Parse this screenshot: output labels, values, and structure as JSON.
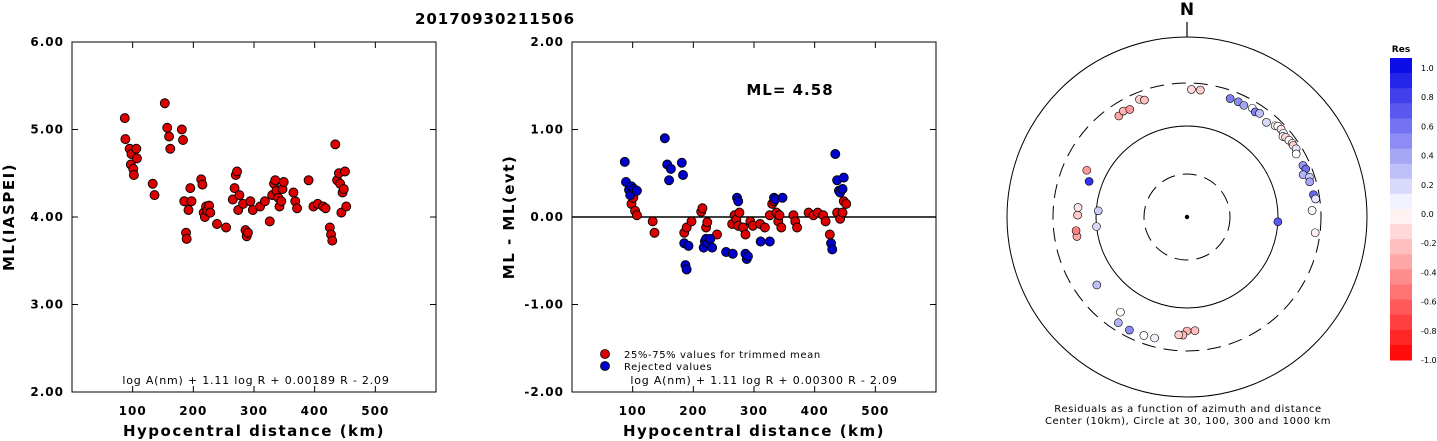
{
  "title": "20170930211506",
  "colors": {
    "accepted": "#dd0000",
    "rejected": "#0000cc",
    "ml_line": "#000000"
  },
  "chart_data": [
    {
      "type": "scatter",
      "id": "ml-vs-distance",
      "xlabel": "Hypocentral distance (km)",
      "ylabel": "ML(IASPEI)",
      "xlim": [
        0,
        600
      ],
      "ylim": [
        2.0,
        6.0
      ],
      "xticks": [
        100,
        200,
        300,
        400,
        500
      ],
      "yticks": [
        2.0,
        3.0,
        4.0,
        5.0,
        6.0
      ],
      "ytick_labels": [
        "2.00",
        "3.00",
        "4.00",
        "5.00",
        "6.00"
      ],
      "formula": "log A(nm) + 1.11 log R + 0.00189 R - 2.09",
      "series": [
        {
          "color": "red",
          "points": [
            [
              87,
              5.13
            ],
            [
              88,
              4.89
            ],
            [
              95,
              4.78
            ],
            [
              97,
              4.6
            ],
            [
              98,
              4.72
            ],
            [
              101,
              4.55
            ],
            [
              102,
              4.48
            ],
            [
              106,
              4.78
            ],
            [
              107,
              4.67
            ],
            [
              133,
              4.38
            ],
            [
              136,
              4.25
            ],
            [
              153,
              5.3
            ],
            [
              157,
              5.02
            ],
            [
              160,
              4.92
            ],
            [
              162,
              4.78
            ],
            [
              181,
              5.0
            ],
            [
              183,
              4.88
            ],
            [
              185,
              4.18
            ],
            [
              188,
              3.82
            ],
            [
              189,
              3.75
            ],
            [
              192,
              4.08
            ],
            [
              195,
              4.33
            ],
            [
              197,
              4.18
            ],
            [
              213,
              4.43
            ],
            [
              215,
              4.37
            ],
            [
              217,
              4.05
            ],
            [
              219,
              4.0
            ],
            [
              221,
              4.12
            ],
            [
              223,
              4.07
            ],
            [
              226,
              4.13
            ],
            [
              228,
              4.05
            ],
            [
              239,
              3.92
            ],
            [
              254,
              3.88
            ],
            [
              265,
              4.2
            ],
            [
              268,
              4.33
            ],
            [
              270,
              4.48
            ],
            [
              272,
              4.52
            ],
            [
              274,
              4.08
            ],
            [
              276,
              4.25
            ],
            [
              282,
              4.15
            ],
            [
              286,
              3.85
            ],
            [
              288,
              3.78
            ],
            [
              290,
              3.82
            ],
            [
              294,
              4.18
            ],
            [
              298,
              4.08
            ],
            [
              310,
              4.12
            ],
            [
              318,
              4.18
            ],
            [
              326,
              3.95
            ],
            [
              330,
              4.25
            ],
            [
              333,
              4.38
            ],
            [
              335,
              4.42
            ],
            [
              337,
              4.3
            ],
            [
              340,
              4.22
            ],
            [
              342,
              4.12
            ],
            [
              345,
              4.18
            ],
            [
              347,
              4.32
            ],
            [
              349,
              4.4
            ],
            [
              365,
              4.28
            ],
            [
              368,
              4.18
            ],
            [
              371,
              4.1
            ],
            [
              390,
              4.42
            ],
            [
              398,
              4.12
            ],
            [
              405,
              4.15
            ],
            [
              414,
              4.12
            ],
            [
              418,
              4.1
            ],
            [
              425,
              3.88
            ],
            [
              427,
              3.8
            ],
            [
              429,
              3.73
            ],
            [
              434,
              4.83
            ],
            [
              437,
              4.42
            ],
            [
              440,
              4.5
            ],
            [
              442,
              4.38
            ],
            [
              444,
              4.05
            ],
            [
              446,
              4.28
            ],
            [
              448,
              4.32
            ],
            [
              450,
              4.52
            ],
            [
              452,
              4.12
            ]
          ]
        }
      ]
    },
    {
      "type": "scatter",
      "id": "residual-vs-distance",
      "xlabel": "Hypocentral distance (km)",
      "ylabel": "ML - ML(evt)",
      "xlim": [
        0,
        600
      ],
      "ylim": [
        -2.0,
        2.0
      ],
      "xticks": [
        100,
        200,
        300,
        400,
        500
      ],
      "yticks": [
        -2.0,
        -1.0,
        0.0,
        1.0,
        2.0
      ],
      "ytick_labels": [
        "-2.00",
        "-1.00",
        "0.00",
        "1.00",
        "2.00"
      ],
      "ml_label": "ML= 4.58",
      "ml": 4.58,
      "formula": "log A(nm) + 1.11 log R + 0.00300 R - 2.09",
      "legend": {
        "accepted": "25%-75% values for trimmed mean",
        "rejected": "Rejected values"
      },
      "series": [
        {
          "kind": "accepted",
          "points": [
            [
              98,
              0.15
            ],
            [
              101,
              0.22
            ],
            [
              104,
              0.07
            ],
            [
              107,
              0.02
            ],
            [
              133,
              -0.05
            ],
            [
              136,
              -0.18
            ],
            [
              185,
              -0.18
            ],
            [
              189,
              -0.12
            ],
            [
              197,
              -0.05
            ],
            [
              213,
              0.06
            ],
            [
              215,
              0.1
            ],
            [
              221,
              -0.12
            ],
            [
              223,
              -0.06
            ],
            [
              239,
              -0.2
            ],
            [
              264,
              -0.08
            ],
            [
              268,
              0.02
            ],
            [
              271,
              -0.03
            ],
            [
              274,
              -0.1
            ],
            [
              276,
              0.05
            ],
            [
              282,
              -0.12
            ],
            [
              286,
              -0.2
            ],
            [
              294,
              -0.05
            ],
            [
              298,
              -0.1
            ],
            [
              310,
              -0.08
            ],
            [
              318,
              -0.12
            ],
            [
              326,
              0.02
            ],
            [
              330,
              0.15
            ],
            [
              333,
              0.18
            ],
            [
              337,
              0.05
            ],
            [
              340,
              -0.05
            ],
            [
              342,
              0.02
            ],
            [
              345,
              -0.12
            ],
            [
              365,
              0.02
            ],
            [
              368,
              -0.05
            ],
            [
              371,
              -0.12
            ],
            [
              390,
              0.05
            ],
            [
              398,
              0.02
            ],
            [
              405,
              0.05
            ],
            [
              414,
              0.02
            ],
            [
              418,
              -0.05
            ],
            [
              425,
              -0.2
            ],
            [
              437,
              0.05
            ],
            [
              442,
              -0.02
            ],
            [
              446,
              0.05
            ],
            [
              448,
              0.18
            ],
            [
              452,
              0.15
            ]
          ]
        },
        {
          "kind": "rejected",
          "points": [
            [
              87,
              0.63
            ],
            [
              89,
              0.4
            ],
            [
              94,
              0.31
            ],
            [
              96,
              0.25
            ],
            [
              98,
              0.35
            ],
            [
              102,
              0.32
            ],
            [
              107,
              0.3
            ],
            [
              153,
              0.9
            ],
            [
              157,
              0.6
            ],
            [
              160,
              0.42
            ],
            [
              163,
              0.55
            ],
            [
              181,
              0.62
            ],
            [
              183,
              0.48
            ],
            [
              185,
              -0.3
            ],
            [
              187,
              -0.55
            ],
            [
              189,
              -0.6
            ],
            [
              192,
              -0.33
            ],
            [
              217,
              -0.35
            ],
            [
              219,
              -0.28
            ],
            [
              221,
              -0.25
            ],
            [
              224,
              -0.3
            ],
            [
              228,
              -0.25
            ],
            [
              231,
              -0.35
            ],
            [
              254,
              -0.4
            ],
            [
              265,
              -0.42
            ],
            [
              272,
              0.22
            ],
            [
              274,
              0.18
            ],
            [
              286,
              -0.42
            ],
            [
              288,
              -0.48
            ],
            [
              290,
              -0.45
            ],
            [
              311,
              -0.28
            ],
            [
              326,
              -0.28
            ],
            [
              333,
              0.22
            ],
            [
              335,
              0.2
            ],
            [
              347,
              0.22
            ],
            [
              427,
              -0.3
            ],
            [
              429,
              -0.37
            ],
            [
              434,
              0.72
            ],
            [
              437,
              0.42
            ],
            [
              440,
              0.3
            ],
            [
              442,
              0.28
            ],
            [
              446,
              0.32
            ],
            [
              448,
              0.45
            ]
          ]
        }
      ]
    },
    {
      "type": "scatter",
      "id": "polar-residuals",
      "north_label": "N",
      "caption_line1": "Residuals as a function of azimuth and distance",
      "caption_line2": "Center (10km), Circle at 30, 100, 300 and 1000 km",
      "rings_km": [
        30,
        100,
        300,
        1000
      ],
      "colorbar": {
        "title": "Res",
        "range": [
          -1.0,
          1.0
        ],
        "tick_labels": [
          "1.0",
          "0.8",
          "0.6",
          "0.4",
          "0.2",
          "0.0",
          "-0.2",
          "-0.4",
          "-0.6",
          "-0.8",
          "-1.0"
        ]
      },
      "stations": [
        [
          2,
          255,
          -0.15
        ],
        [
          6,
          255,
          -0.2
        ],
        [
          20,
          245,
          0.5
        ],
        [
          24,
          245,
          0.45
        ],
        [
          27,
          240,
          0.35
        ],
        [
          31,
          250,
          0.0
        ],
        [
          33,
          240,
          0.5
        ],
        [
          35,
          248,
          0.25
        ],
        [
          40,
          230,
          0.15
        ],
        [
          44,
          250,
          -0.05
        ],
        [
          45,
          260,
          0.0
        ],
        [
          47,
          262,
          -0.1
        ],
        [
          49,
          255,
          0.05
        ],
        [
          50,
          240,
          0.0
        ],
        [
          51,
          250,
          -0.15
        ],
        [
          53,
          255,
          0.0
        ],
        [
          55,
          260,
          -0.05
        ],
        [
          56,
          258,
          -0.2
        ],
        [
          58,
          262,
          0.1
        ],
        [
          60,
          245,
          0.0
        ],
        [
          66,
          250,
          0.4
        ],
        [
          68,
          258,
          0.55
        ],
        [
          70,
          230,
          0.3
        ],
        [
          72,
          262,
          0.2
        ],
        [
          74,
          255,
          0.35
        ],
        [
          80,
          260,
          0.6
        ],
        [
          82,
          270,
          0.1
        ],
        [
          87,
          240,
          0.0
        ],
        [
          93,
          100,
          0.65
        ],
        [
          97,
          265,
          -0.05
        ],
        [
          176,
          180,
          -0.25
        ],
        [
          180,
          180,
          -0.3
        ],
        [
          182,
          200,
          -0.25
        ],
        [
          184,
          200,
          -0.2
        ],
        [
          195,
          240,
          0.05
        ],
        [
          200,
          245,
          0.0
        ],
        [
          207,
          250,
          0.45
        ],
        [
          213,
          245,
          0.3
        ],
        [
          215,
          190,
          0.0
        ],
        [
          233,
          175,
          0.25
        ],
        [
          260,
          170,
          -0.35
        ],
        [
          263,
          170,
          -0.5
        ],
        [
          264,
          100,
          0.15
        ],
        [
          271,
          160,
          -0.2
        ],
        [
          274,
          95,
          0.2
        ],
        [
          275,
          160,
          -0.1
        ],
        [
          290,
          140,
          0.8
        ],
        [
          295,
          165,
          -0.4
        ],
        [
          326,
          220,
          -0.35
        ],
        [
          329,
          230,
          -0.3
        ],
        [
          332,
          220,
          -0.4
        ],
        [
          338,
          250,
          -0.2
        ],
        [
          340,
          235,
          -0.25
        ]
      ]
    }
  ]
}
